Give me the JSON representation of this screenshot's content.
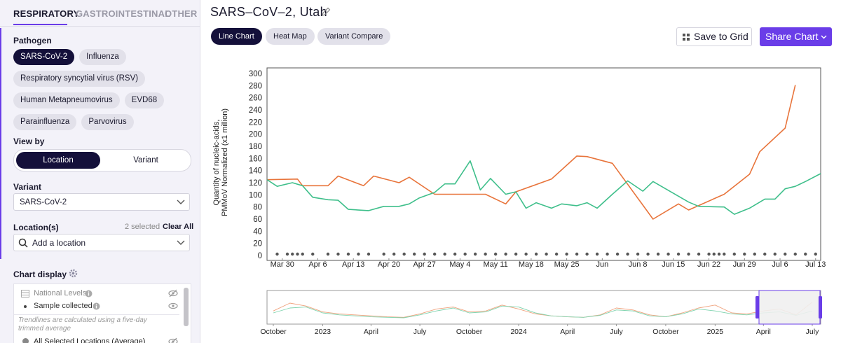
{
  "tabs": [
    "RESPIRATORY",
    "GASTROINTESTINAL",
    "OTHER"
  ],
  "sidebar": {
    "pathogen_label": "Pathogen",
    "pathogens": [
      "SARS-CoV-2",
      "Influenza",
      "Respiratory syncytial virus (RSV)",
      "Human Metapneumovirus",
      "EVD68",
      "Parainfluenza",
      "Parvovirus"
    ],
    "view_by_label": "View by",
    "view_by_options": [
      "Location",
      "Variant"
    ],
    "variant_label": "Variant",
    "variant_value": "SARS-CoV-2",
    "locations_label": "Location(s)",
    "locations_selected": "2 selected",
    "clear_all": "Clear All",
    "location_placeholder": "Add a location",
    "chart_display_label": "Chart display",
    "display_items": {
      "national_levels": "National Levels",
      "sample_collected": "Sample collected",
      "trendline_note": "Trendlines are calculated using a five-day trimmed average",
      "all_selected": "All Selected Locations (Average)"
    }
  },
  "header": {
    "title": "SARS–CoV–2, Utah",
    "chart_types": [
      "Line Chart",
      "Heat Map",
      "Variant Compare"
    ],
    "save": "Save to Grid",
    "share": "Share Chart"
  },
  "chart_data": [
    {
      "type": "line",
      "y_label": [
        "Quantity of nucleic-acids,",
        "PMMoV Normalized (x1 million)"
      ],
      "ylim": [
        0,
        300
      ],
      "yticks": [
        0,
        20,
        40,
        60,
        80,
        100,
        120,
        140,
        160,
        180,
        200,
        220,
        240,
        260,
        280,
        300
      ],
      "xlim": [
        "Mar 27",
        "Jul 14"
      ],
      "xticks": [
        "Mar 30",
        "Apr 6",
        "Apr 13",
        "Apr 20",
        "Apr 27",
        "May 4",
        "May 11",
        "May 18",
        "May 25",
        {
          "value": "Jun 1",
          "label": "Jun"
        },
        "Jun 8",
        "Jun 15",
        "Jun 22",
        "Jun 29",
        "Jul 6",
        "Jul 13"
      ],
      "grid": false,
      "sample_dates": [
        "Mar 29",
        "Mar 31",
        "Apr 1",
        "Apr 2",
        "Apr 3",
        "Apr 5",
        "Apr 8",
        "Apr 10",
        "Apr 12",
        "Apr 14",
        "Apr 16",
        "Apr 19",
        "Apr 21",
        "Apr 23",
        "Apr 25",
        "Apr 27",
        "Apr 29",
        "May 1",
        "May 3",
        "May 5",
        "May 7",
        "May 9",
        "May 11",
        "May 13",
        "May 15",
        "May 17",
        "May 19",
        "May 21",
        "May 23",
        "May 25",
        "May 27",
        "May 29",
        "May 31",
        "Jun 2",
        "Jun 4",
        "Jun 6",
        "Jun 8",
        "Jun 10",
        "Jun 12",
        "Jun 14",
        "Jun 16",
        "Jun 18",
        "Jun 20",
        "Jun 22",
        "Jun 23",
        "Jun 24",
        "Jun 25",
        "Jun 27",
        "Jun 29",
        "Jul 1",
        "Jul 3",
        "Jul 5",
        "Jul 7",
        "Jul 9",
        "Jul 11",
        "Jul 13"
      ],
      "series": [
        {
          "color": "#e8743b",
          "x": [
            "Mar 27",
            "Apr 2",
            "Apr 3",
            "Apr 8",
            "Apr 10",
            "Apr 15",
            "Apr 17",
            "Apr 22",
            "Apr 24",
            "Apr 29",
            "May 9",
            "May 13",
            "May 15",
            "May 22",
            "May 27",
            "May 29",
            "Jun 3",
            "Jun 11",
            "Jun 16",
            "Jun 18",
            "Jun 25",
            "Jun 30",
            "Jul 2",
            "Jul 7",
            "Jul 9"
          ],
          "values": [
            125,
            126,
            115,
            115,
            131,
            115,
            131,
            120,
            129,
            101,
            101,
            85,
            105,
            126,
            164,
            163,
            152,
            60,
            85,
            75,
            101,
            134,
            171,
            210,
            281
          ]
        },
        {
          "color": "#3fbf8b",
          "x": [
            "Mar 27",
            "Mar 29",
            "Apr 1",
            "Apr 3",
            "Apr 5",
            "Apr 8",
            "Apr 10",
            "Apr 12",
            "Apr 16",
            "Apr 19",
            "Apr 22",
            "Apr 24",
            "Apr 26",
            "Apr 29",
            "May 1",
            "May 3",
            "May 6",
            "May 8",
            "May 10",
            "May 13",
            "May 15",
            "May 17",
            "May 19",
            "May 22",
            "May 24",
            "May 27",
            "May 29",
            "May 31",
            "Jun 3",
            "Jun 6",
            "Jun 9",
            "Jun 11",
            "Jun 18",
            "Jun 20",
            "Jun 25",
            "Jun 27",
            "Jun 30",
            "Jul 3",
            "Jul 5",
            "Jul 7",
            "Jul 9",
            "Jul 11",
            "Jul 14"
          ],
          "values": [
            125,
            114,
            120,
            115,
            96,
            92,
            91,
            76,
            74,
            81,
            81,
            85,
            95,
            104,
            118,
            118,
            156,
            108,
            127,
            101,
            105,
            78,
            87,
            78,
            85,
            82,
            87,
            78,
            101,
            123,
            106,
            122,
            88,
            81,
            80,
            68,
            78,
            93,
            93,
            110,
            114,
            122,
            135
          ]
        }
      ]
    },
    {
      "type": "line",
      "xlim": [
        "2022-10",
        "2025-07"
      ],
      "xticks": [
        {
          "value": "2022-10",
          "label": "October"
        },
        {
          "value": "2023-01",
          "label": "2023"
        },
        {
          "value": "2023-04",
          "label": "April"
        },
        {
          "value": "2023-07",
          "label": "July"
        },
        {
          "value": "2023-10",
          "label": "October"
        },
        {
          "value": "2024-01",
          "label": "2024"
        },
        {
          "value": "2024-04",
          "label": "April"
        },
        {
          "value": "2024-07",
          "label": "July"
        },
        {
          "value": "2024-10",
          "label": "October"
        },
        {
          "value": "2025-01",
          "label": "2025"
        },
        {
          "value": "2025-04",
          "label": "April"
        },
        {
          "value": "2025-07",
          "label": "July"
        }
      ],
      "series": [
        {
          "color": "#f0a27d",
          "x": [
            "2022-10",
            "2022-11",
            "2022-12",
            "2023-01",
            "2023-02",
            "2023-03",
            "2023-04",
            "2023-05",
            "2023-06",
            "2023-07",
            "2023-08",
            "2023-09",
            "2023-10",
            "2023-11",
            "2023-12",
            "2024-01",
            "2024-02",
            "2024-03",
            "2024-04",
            "2024-05",
            "2024-06",
            "2024-07",
            "2024-08",
            "2024-09",
            "2024-10",
            "2024-11",
            "2024-12",
            "2025-01",
            "2025-02",
            "2025-03",
            "2025-04",
            "2025-05",
            "2025-06",
            "2025-07"
          ],
          "values": [
            120,
            200,
            170,
            110,
            90,
            80,
            70,
            60,
            55,
            90,
            140,
            160,
            110,
            120,
            180,
            140,
            90,
            70,
            60,
            55,
            80,
            150,
            130,
            80,
            60,
            100,
            150,
            180,
            100,
            90,
            120,
            140,
            80,
            210
          ]
        },
        {
          "color": "#7fd3ae",
          "x": [
            "2022-10",
            "2022-11",
            "2022-12",
            "2023-01",
            "2023-02",
            "2023-03",
            "2023-04",
            "2023-05",
            "2023-06",
            "2023-07",
            "2023-08",
            "2023-09",
            "2023-10",
            "2023-11",
            "2023-12",
            "2024-01",
            "2024-02",
            "2024-03",
            "2024-04",
            "2024-05",
            "2024-06",
            "2024-07",
            "2024-08",
            "2024-09",
            "2024-10",
            "2024-11",
            "2024-12",
            "2025-01",
            "2025-02",
            "2025-03",
            "2025-04",
            "2025-05",
            "2025-06",
            "2025-07"
          ],
          "values": [
            100,
            150,
            160,
            100,
            80,
            70,
            60,
            55,
            50,
            80,
            120,
            150,
            100,
            110,
            170,
            160,
            100,
            70,
            60,
            55,
            75,
            130,
            120,
            70,
            60,
            90,
            140,
            120,
            90,
            80,
            100,
            110,
            75,
            120
          ]
        }
      ]
    }
  ]
}
